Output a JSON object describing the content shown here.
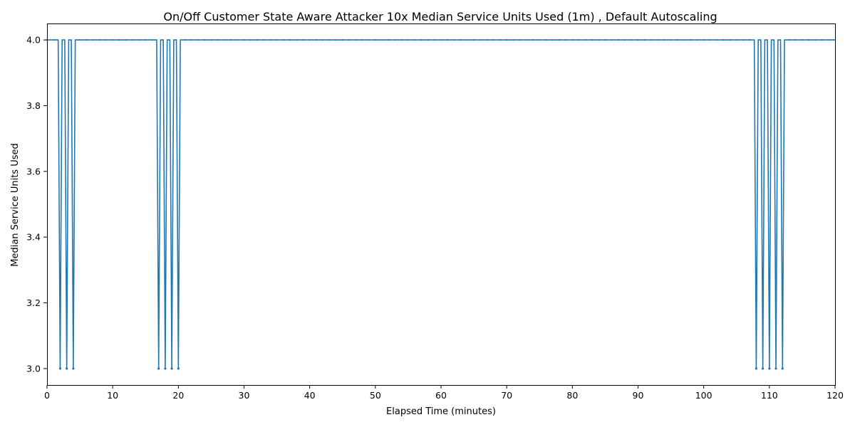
{
  "chart_data": {
    "type": "line",
    "title": "On/Off Customer State Aware Attacker 10x Median Service Units Used (1m) , Default Autoscaling",
    "xlabel": "Elapsed Time (minutes)",
    "ylabel": "Median Service Units Used",
    "xlim": [
      0,
      120
    ],
    "ylim": [
      2.95,
      4.05
    ],
    "xticks": [
      0,
      10,
      20,
      30,
      40,
      50,
      60,
      70,
      80,
      90,
      100,
      110,
      120
    ],
    "xtick_labels": [
      "0",
      "10",
      "20",
      "30",
      "40",
      "50",
      "60",
      "70",
      "80",
      "90",
      "100",
      "110",
      "120"
    ],
    "yticks": [
      3.0,
      3.2,
      3.4,
      3.6,
      3.8,
      4.0
    ],
    "ytick_labels": [
      "3.0",
      "3.2",
      "3.4",
      "3.6",
      "3.8",
      "4.0"
    ],
    "grid": false,
    "series_color": "#1f77b4",
    "baseline_value": 4.0,
    "dip_value": 3.0,
    "dip_times": [
      2,
      3,
      4,
      17,
      18,
      19,
      20,
      108,
      109,
      110,
      111,
      112
    ],
    "series": [
      {
        "x": [
          0,
          1.7,
          2,
          2.3,
          2.7,
          3,
          3.3,
          3.7,
          4,
          4.3,
          16.7,
          17,
          17.3,
          17.7,
          18,
          18.3,
          18.7,
          19,
          19.3,
          19.7,
          20,
          20.3,
          107.7,
          108,
          108.3,
          108.7,
          109,
          109.3,
          109.7,
          110,
          110.3,
          110.7,
          111,
          111.3,
          111.7,
          112,
          112.3,
          120
        ],
        "y": [
          4,
          4,
          3,
          4,
          4,
          3,
          4,
          4,
          3,
          4,
          4,
          3,
          4,
          4,
          3,
          4,
          4,
          3,
          4,
          4,
          3,
          4,
          4,
          3,
          4,
          4,
          3,
          4,
          4,
          3,
          4,
          4,
          3,
          4,
          4,
          3,
          4,
          4
        ]
      }
    ]
  }
}
